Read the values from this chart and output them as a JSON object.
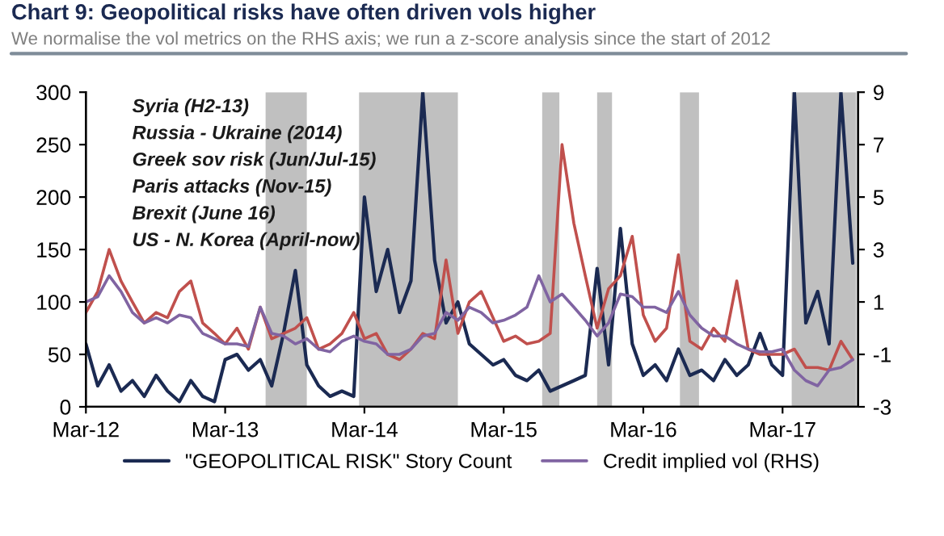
{
  "chart_data": {
    "type": "line",
    "title": "Chart 9: Geopolitical risks have often driven vols higher",
    "subtitle": "We normalise the vol metrics on the RHS axis; we run a z-score analysis since the start of 2012",
    "annotations": [
      "Syria (H2-13)",
      "Russia - Ukraine (2014)",
      "Greek sov risk (Jun/Jul-15)",
      "Paris attacks (Nov-15)",
      "Brexit (June 16)",
      "US - N. Korea (April-now)"
    ],
    "x": [
      "2012-03",
      "2012-04",
      "2012-05",
      "2012-06",
      "2012-07",
      "2012-08",
      "2012-09",
      "2012-10",
      "2012-11",
      "2012-12",
      "2013-01",
      "2013-02",
      "2013-03",
      "2013-04",
      "2013-05",
      "2013-06",
      "2013-07",
      "2013-08",
      "2013-09",
      "2013-10",
      "2013-11",
      "2013-12",
      "2014-01",
      "2014-02",
      "2014-03",
      "2014-04",
      "2014-05",
      "2014-06",
      "2014-07",
      "2014-08",
      "2014-09",
      "2014-10",
      "2014-11",
      "2014-12",
      "2015-01",
      "2015-02",
      "2015-03",
      "2015-04",
      "2015-05",
      "2015-06",
      "2015-07",
      "2015-08",
      "2015-09",
      "2015-10",
      "2015-11",
      "2015-12",
      "2016-01",
      "2016-02",
      "2016-03",
      "2016-04",
      "2016-05",
      "2016-06",
      "2016-07",
      "2016-08",
      "2016-09",
      "2016-10",
      "2016-11",
      "2016-12",
      "2017-01",
      "2017-02",
      "2017-03",
      "2017-04",
      "2017-05",
      "2017-06",
      "2017-07",
      "2017-08",
      "2017-09"
    ],
    "series": [
      {
        "name": "\"GEOPOLITICAL RISK\" Story Count",
        "color": "#1b2a52",
        "values": [
          60,
          20,
          40,
          15,
          25,
          10,
          30,
          15,
          5,
          25,
          10,
          5,
          45,
          50,
          35,
          45,
          20,
          70,
          130,
          40,
          20,
          10,
          15,
          10,
          200,
          110,
          150,
          90,
          120,
          300,
          140,
          80,
          100,
          60,
          50,
          40,
          45,
          30,
          25,
          35,
          15,
          20,
          25,
          30,
          132,
          40,
          170,
          60,
          30,
          40,
          25,
          55,
          30,
          35,
          25,
          45,
          30,
          40,
          70,
          40,
          30,
          300,
          80,
          110,
          60,
          300,
          137
        ]
      },
      {
        "color": "#c0504d",
        "axis": "y2",
        "values": [
          0.6,
          1.4,
          3,
          1.8,
          1,
          0.2,
          0.6,
          0.4,
          1.4,
          1.8,
          0.2,
          -0.2,
          -0.6,
          0,
          -0.8,
          0.8,
          -0.4,
          -0.2,
          0,
          0.4,
          -0.8,
          -0.6,
          -0.2,
          0.6,
          -0.4,
          -0.2,
          -1,
          -1.2,
          -0.8,
          -0.2,
          -0.4,
          2.6,
          -0.2,
          1,
          1.4,
          0.4,
          -0.5,
          -0.3,
          -0.6,
          -0.5,
          -0.2,
          7,
          4,
          2,
          0,
          1.5,
          2,
          3.5,
          0.5,
          -0.5,
          0,
          2.8,
          -0.5,
          -0.8,
          0,
          -0.5,
          1.8,
          -0.8,
          -1,
          -1,
          -1,
          -0.8,
          -1.5,
          -1.5,
          -1.6,
          -0.5,
          -1.2
        ]
      },
      {
        "name": "Credit implied vol (RHS)",
        "color": "#8064a2",
        "axis": "y2",
        "values": [
          1.0,
          1.2,
          2.0,
          1.4,
          0.6,
          0.2,
          0.4,
          0.2,
          0.5,
          0.4,
          -0.2,
          -0.4,
          -0.6,
          -0.6,
          -0.7,
          0.8,
          -0.2,
          -0.3,
          -0.6,
          -0.4,
          -0.8,
          -0.9,
          -0.5,
          -0.3,
          -0.5,
          -0.6,
          -1.0,
          -1.0,
          -0.8,
          -0.3,
          -0.2,
          0.6,
          0.3,
          0.8,
          0.6,
          0.2,
          0.3,
          0.5,
          0.8,
          2.0,
          1.0,
          1.3,
          0.8,
          0.3,
          -0.3,
          0.2,
          1.3,
          1.2,
          0.8,
          0.8,
          0.6,
          1.4,
          0.5,
          0,
          -0.3,
          -0.3,
          -0.6,
          -0.8,
          -0.9,
          -0.9,
          -0.8,
          -1.6,
          -2.0,
          -2.2,
          -1.6,
          -1.5,
          -1.2
        ]
      }
    ],
    "bands": [
      {
        "axis": "x",
        "from": "2013-06-15",
        "to": "2013-10-01",
        "color": "#c0c0c0"
      },
      {
        "axis": "x",
        "from": "2014-02-15",
        "to": "2014-11-01",
        "color": "#c0c0c0"
      },
      {
        "axis": "x",
        "from": "2015-06-10",
        "to": "2015-07-25",
        "color": "#c0c0c0"
      },
      {
        "axis": "x",
        "from": "2015-11-01",
        "to": "2015-12-10",
        "color": "#c0c0c0"
      },
      {
        "axis": "x",
        "from": "2016-06-05",
        "to": "2016-07-25",
        "color": "#c0c0c0"
      },
      {
        "axis": "x",
        "from": "2017-03-25",
        "to": "2017-09-10",
        "color": "#c0c0c0"
      }
    ],
    "xlim": [
      "2012-03",
      "2017-09-15"
    ],
    "xticks": [
      {
        "value": "2012-03",
        "label": "Mar-12"
      },
      {
        "value": "2013-03",
        "label": "Mar-13"
      },
      {
        "value": "2014-03",
        "label": "Mar-14"
      },
      {
        "value": "2015-03",
        "label": "Mar-15"
      },
      {
        "value": "2016-03",
        "label": "Mar-16"
      },
      {
        "value": "2017-03",
        "label": "Mar-17"
      }
    ],
    "ylim": [
      0,
      300
    ],
    "yticks": [
      0,
      50,
      100,
      150,
      200,
      250,
      300
    ],
    "y2lim": [
      -3,
      9
    ],
    "y2ticks": [
      -3,
      -1,
      1,
      3,
      5,
      7,
      9
    ],
    "grid": false,
    "legend": "bottom",
    "line_style": "solid"
  }
}
